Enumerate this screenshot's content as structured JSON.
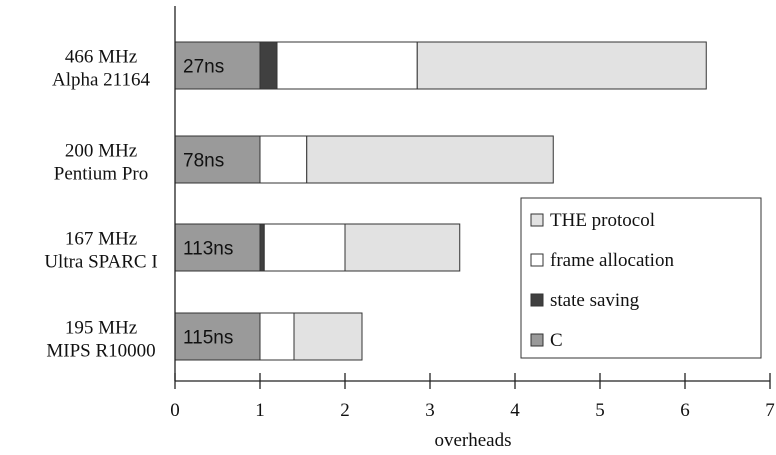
{
  "chart_data": {
    "type": "bar",
    "orientation": "horizontal",
    "stacked": true,
    "title": "",
    "xlabel": "overheads",
    "ylabel": "",
    "xlim": [
      0,
      7
    ],
    "xticks": [
      "0",
      "1",
      "2",
      "3",
      "4",
      "5",
      "6",
      "7"
    ],
    "grid": false,
    "legend_position": "right",
    "categories": [
      [
        "466 MHz",
        "Alpha 21164"
      ],
      [
        "200 MHz",
        "Pentium Pro"
      ],
      [
        "167 MHz",
        "Ultra SPARC I"
      ],
      [
        "195 MHz",
        "MIPS R10000"
      ]
    ],
    "data_labels": [
      "27ns",
      "78ns",
      "113ns",
      "115ns"
    ],
    "series": [
      {
        "name": "C",
        "color": "#9a9a9a",
        "values": [
          1.0,
          1.0,
          1.0,
          1.0
        ]
      },
      {
        "name": "state saving",
        "color": "#404040",
        "values": [
          0.2,
          0.0,
          0.05,
          0.0
        ]
      },
      {
        "name": "frame allocation",
        "color": "#ffffff",
        "values": [
          1.65,
          0.55,
          0.95,
          0.4
        ]
      },
      {
        "name": "THE protocol",
        "color": "#e2e2e2",
        "values": [
          3.4,
          2.9,
          1.35,
          0.8
        ]
      }
    ],
    "legend_order": [
      "THE protocol",
      "frame allocation",
      "state saving",
      "C"
    ]
  }
}
